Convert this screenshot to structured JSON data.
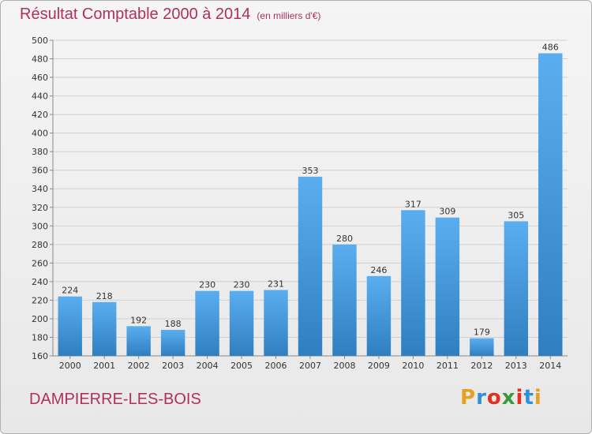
{
  "header": {
    "title": "Résultat Comptable 2000 à 2014",
    "subtitle": "(en milliers d'€)"
  },
  "commune": "DAMPIERRE-LES-BOIS",
  "logo": {
    "letters": [
      "P",
      "r",
      "o",
      "x",
      "i",
      "t",
      "i"
    ],
    "colors": [
      "#e8a020",
      "#2f8fd8",
      "#e0301e",
      "#3a9a3a",
      "#e0301e",
      "#2f8fd8",
      "#e8a020"
    ]
  },
  "chart_data": {
    "type": "bar",
    "title": "Résultat Comptable 2000 à 2014",
    "subtitle": "(en milliers d'€)",
    "categories": [
      "2000",
      "2001",
      "2002",
      "2003",
      "2004",
      "2005",
      "2006",
      "2007",
      "2008",
      "2009",
      "2010",
      "2011",
      "2012",
      "2013",
      "2014"
    ],
    "values": [
      224,
      218,
      192,
      188,
      230,
      230,
      231,
      353,
      280,
      246,
      317,
      309,
      179,
      305,
      486
    ],
    "ylim": [
      160,
      500
    ],
    "ytick_step": 20,
    "grid": true,
    "bar_color": "#4a9fe0"
  }
}
